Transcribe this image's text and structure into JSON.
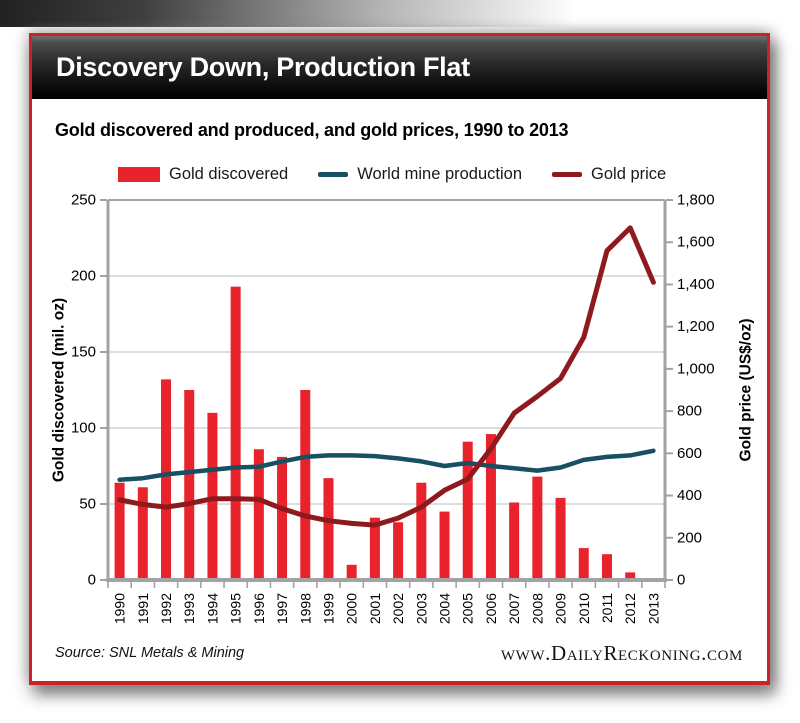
{
  "header": {
    "title": "Discovery Down, Production Flat"
  },
  "subtitle": "Gold discovered and produced, and gold prices, 1990 to 2013",
  "legend": [
    {
      "label": "Gold discovered",
      "swatch": "bar",
      "color": "#e8232b"
    },
    {
      "label": "World mine production",
      "swatch": "line",
      "color": "#174f63"
    },
    {
      "label": "Gold price",
      "swatch": "line",
      "color": "#8e1a1d"
    }
  ],
  "chart_data": {
    "type": "bar+line",
    "categories": [
      "1990",
      "1991",
      "1992",
      "1993",
      "1994",
      "1995",
      "1996",
      "1997",
      "1998",
      "1999",
      "2000",
      "2001",
      "2002",
      "2003",
      "2004",
      "2005",
      "2006",
      "2007",
      "2008",
      "2009",
      "2010",
      "2011",
      "2012",
      "2013"
    ],
    "series": [
      {
        "name": "Gold discovered",
        "type": "bar",
        "axis": "left",
        "color": "#e8232b",
        "values": [
          64,
          61,
          132,
          125,
          110,
          193,
          86,
          81,
          125,
          67,
          10,
          41,
          38,
          64,
          45,
          91,
          96,
          51,
          68,
          54,
          21,
          17,
          5,
          0
        ]
      },
      {
        "name": "World mine production",
        "type": "line",
        "axis": "left",
        "color": "#174f63",
        "values": [
          66,
          67,
          69.5,
          71,
          72.5,
          74,
          74.5,
          78,
          81,
          82,
          82,
          81.5,
          80,
          78,
          75,
          77,
          75,
          73.5,
          72,
          74,
          79,
          81,
          82,
          85
        ]
      },
      {
        "name": "Gold price",
        "type": "line",
        "axis": "right",
        "color": "#8e1a1d",
        "values": [
          380,
          358,
          345,
          362,
          385,
          385,
          382,
          338,
          303,
          281,
          268,
          260,
          293,
          345,
          425,
          478,
          622,
          790,
          870,
          955,
          1150,
          1560,
          1668,
          1410
        ]
      }
    ],
    "left_axis": {
      "label": "Gold discovered (mil. oz)",
      "min": 0,
      "max": 250,
      "step": 50
    },
    "right_axis": {
      "label": "Gold price (US$/oz)",
      "min": 0,
      "max": 1800,
      "step": 200
    },
    "grid": true,
    "legend_position": "top"
  },
  "footer": {
    "source": "Source: SNL Metals & Mining",
    "website": "www.DailyReckoning.com"
  }
}
